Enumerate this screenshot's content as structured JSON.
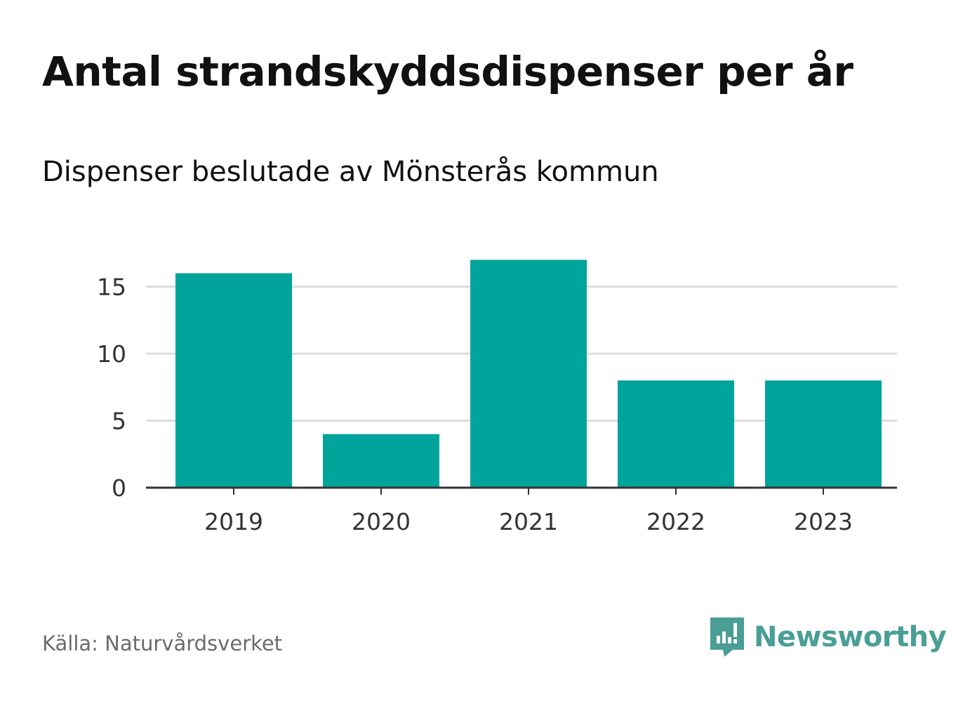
{
  "title": "Antal strandskyddsdispenser per år",
  "subtitle": "Dispenser beslutade av Mönsterås kommun",
  "source": "Källa: Naturvårdsverket",
  "brand": {
    "name": "Newsworthy",
    "icon": "newsworthy-logo-icon",
    "color": "#4a9e95"
  },
  "colors": {
    "bar": "#00a49a",
    "grid": "#dddddd",
    "axis": "#333333"
  },
  "chart_data": {
    "type": "bar",
    "title": "Antal strandskyddsdispenser per år",
    "subtitle": "Dispenser beslutade av Mönsterås kommun",
    "categories": [
      "2019",
      "2020",
      "2021",
      "2022",
      "2023"
    ],
    "values": [
      16,
      4,
      17,
      8,
      8
    ],
    "xlabel": "",
    "ylabel": "",
    "ylim": [
      0,
      17
    ],
    "yticks": [
      0,
      5,
      10,
      15
    ],
    "grid": true
  }
}
